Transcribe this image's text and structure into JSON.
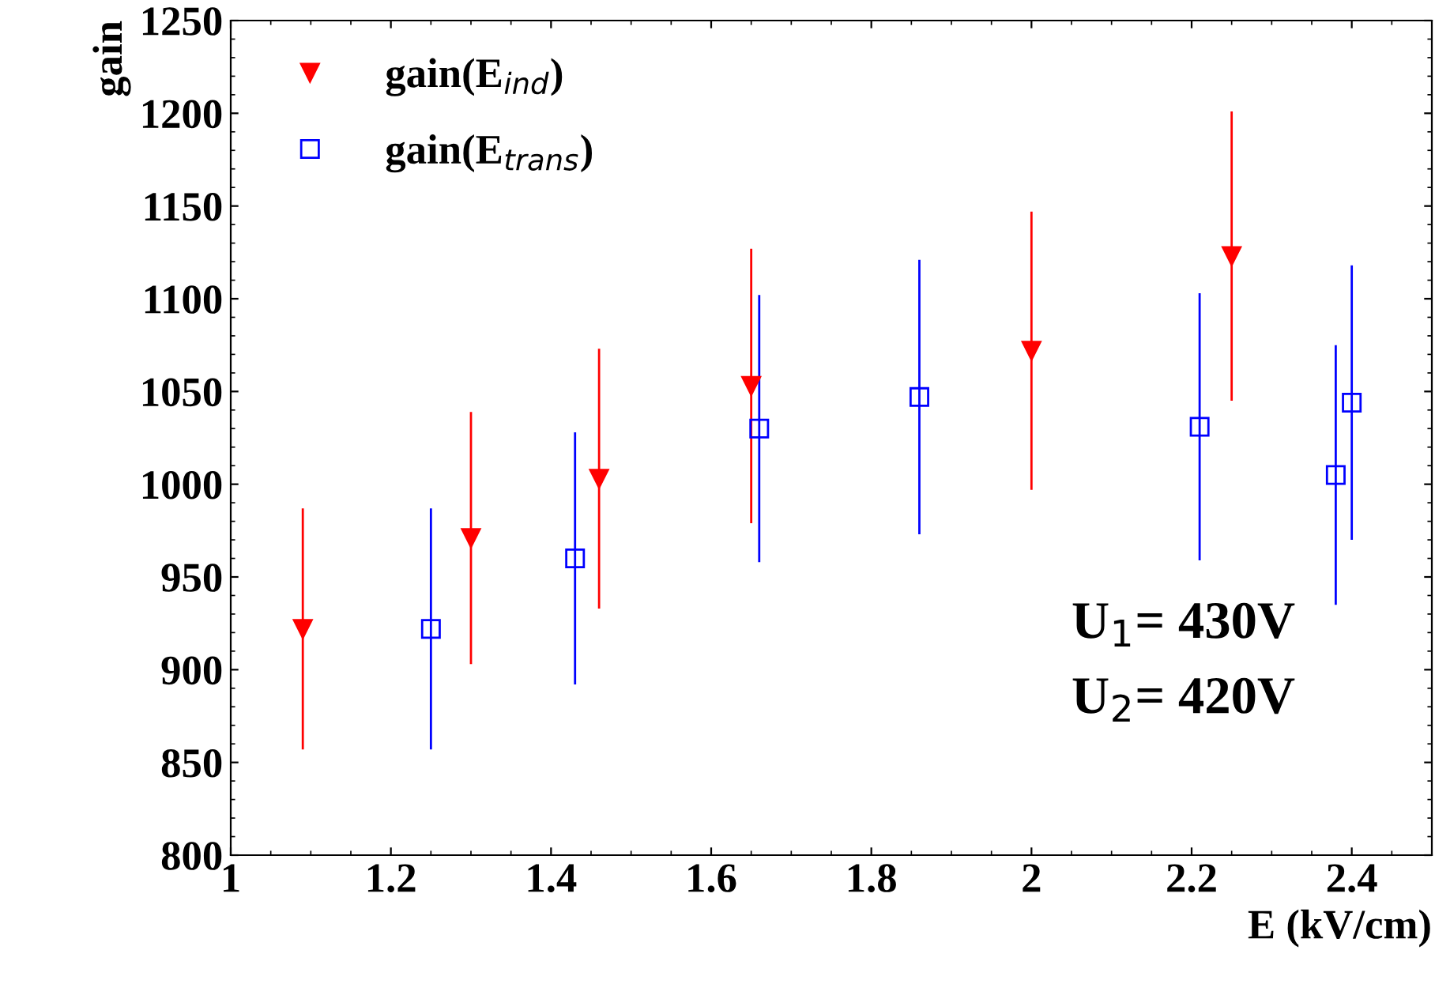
{
  "chart_data": {
    "type": "scatter",
    "xlabel": "E (kV/cm)",
    "ylabel": "gain",
    "xlim": [
      1,
      2.5
    ],
    "xticks": [
      1,
      1.2,
      1.4,
      1.6,
      1.8,
      2,
      2.2,
      2.4
    ],
    "ylim": [
      800,
      1250
    ],
    "yticks": [
      800,
      850,
      900,
      950,
      1000,
      1050,
      1100,
      1150,
      1200,
      1250
    ],
    "grid": false,
    "legend": "top left",
    "series": [
      {
        "name": "gain(E$_{ind}$)",
        "color": "#ff0000",
        "marker": "triangle",
        "x": [
          1.09,
          1.3,
          1.46,
          1.65,
          2.0,
          2.25
        ],
        "values": [
          922,
          971,
          1003,
          1053,
          1072,
          1123
        ],
        "errors": [
          65,
          68,
          70,
          74,
          75,
          78
        ]
      },
      {
        "name": "gain(E$_{trans}$)",
        "color": "#0000ff",
        "marker": "square",
        "x": [
          1.25,
          1.43,
          1.66,
          1.86,
          2.21,
          2.38,
          2.4
        ],
        "values": [
          922,
          960,
          1030,
          1047,
          1031,
          1005,
          1044
        ],
        "errors": [
          65,
          68,
          72,
          74,
          72,
          70,
          74
        ]
      }
    ],
    "annotations": [
      "U$_{1}$= 430V",
      "U$_{2}$= 420V"
    ]
  }
}
